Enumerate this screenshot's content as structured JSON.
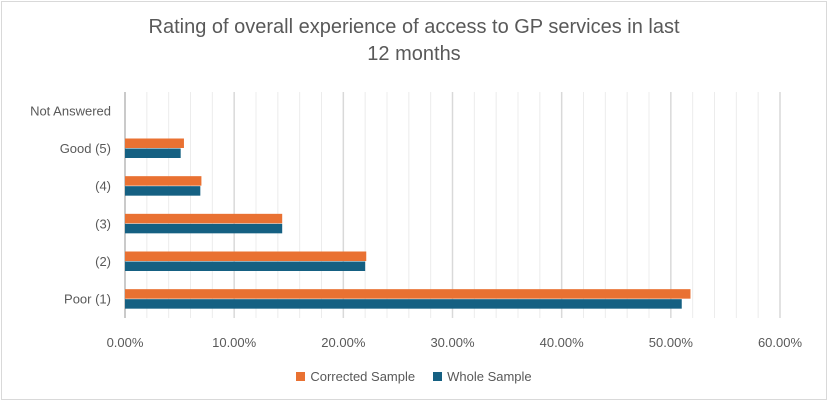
{
  "chart_data": {
    "type": "bar",
    "orientation": "horizontal",
    "title_lines": [
      "Rating of overall experience of access to GP services in last",
      "12 months"
    ],
    "categories": [
      "Poor (1)",
      "(2)",
      "(3)",
      "(4)",
      "Good (5)",
      "Not Answered"
    ],
    "series": [
      {
        "name": "Corrected Sample",
        "color": "#E97132",
        "values": [
          51.8,
          22.1,
          14.4,
          7.0,
          5.4,
          0
        ]
      },
      {
        "name": "Whole Sample",
        "color": "#156082",
        "values": [
          51.0,
          22.0,
          14.4,
          6.9,
          5.1,
          0
        ]
      }
    ],
    "xlim": [
      0,
      60
    ],
    "x_ticks": [
      "0.00%",
      "10.00%",
      "20.00%",
      "30.00%",
      "40.00%",
      "50.00%",
      "60.00%"
    ],
    "x_tick_values": [
      0,
      10,
      20,
      30,
      40,
      50,
      60
    ],
    "minor_grid_step": 2,
    "grid": true,
    "legend": "bottom"
  }
}
